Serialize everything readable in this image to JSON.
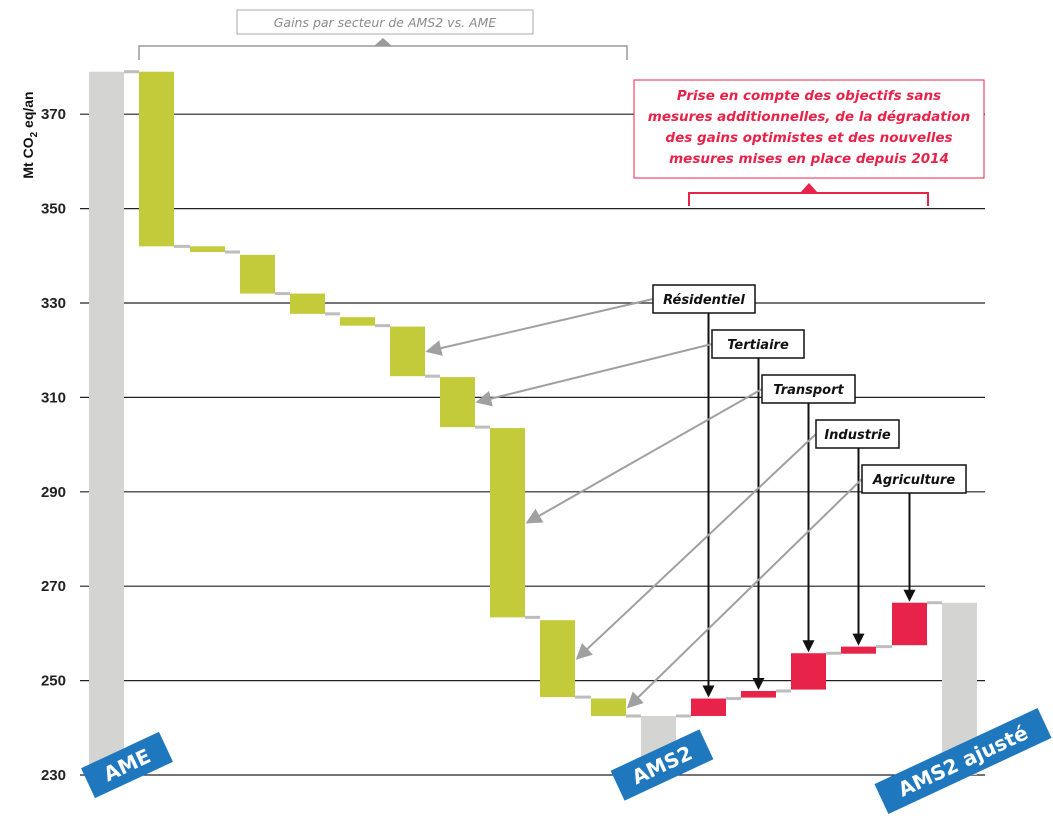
{
  "chart_data": {
    "type": "waterfall",
    "ylabel": "Mt CO",
    "ylabel_sub": "2",
    "ylabel_suffix": " eq/an",
    "ylim": [
      230,
      380
    ],
    "yticks": [
      230,
      250,
      270,
      290,
      310,
      330,
      350,
      370
    ],
    "grid": true,
    "colors": {
      "total": "#d4d4d2",
      "gain": "#c3cb3a",
      "increase": "#e8234a",
      "connector": "#bdbdbd",
      "badge": "#1f77bd"
    },
    "totals": [
      {
        "label": "AME",
        "value": 379
      },
      {
        "label": "AMS2",
        "value": 242.5
      },
      {
        "label": "AMS2 ajusté",
        "value": 266.5
      }
    ],
    "gains": [
      {
        "from": 379,
        "to": 342
      },
      {
        "from": 342,
        "to": 340.8
      },
      {
        "from": 340.2,
        "to": 332
      },
      {
        "from": 332,
        "to": 327.7
      },
      {
        "from": 327,
        "to": 325.2
      },
      {
        "from": 325,
        "to": 314.5
      },
      {
        "from": 314.3,
        "to": 303.7
      },
      {
        "from": 303.5,
        "to": 263.4
      },
      {
        "from": 262.8,
        "to": 246.5
      },
      {
        "from": 246.2,
        "to": 242.5
      }
    ],
    "increases": [
      {
        "from": 242.5,
        "to": 246.2
      },
      {
        "from": 246.4,
        "to": 247.8
      },
      {
        "from": 248.1,
        "to": 255.8
      },
      {
        "from": 255.7,
        "to": 257.2
      },
      {
        "from": 257.5,
        "to": 266.5
      }
    ],
    "callouts": [
      {
        "label": "Résidentiel",
        "gain_index": 5,
        "increase_index": 0
      },
      {
        "label": "Tertiaire",
        "gain_index": 6,
        "increase_index": 1
      },
      {
        "label": "Transport",
        "gain_index": 7,
        "increase_index": 2
      },
      {
        "label": "Industrie",
        "gain_index": 8,
        "increase_index": 3
      },
      {
        "label": "Agriculture",
        "gain_index": 9,
        "increase_index": 4
      }
    ],
    "annotations": {
      "gains_bracket": "Gains par secteur de AMS2 vs. AME",
      "adjustment_note": [
        "Prise en compte des objectifs sans",
        "mesures additionnelles, de la dégradation",
        "des gains optimistes et des nouvelles",
        "mesures mises en place depuis 2014"
      ]
    }
  }
}
